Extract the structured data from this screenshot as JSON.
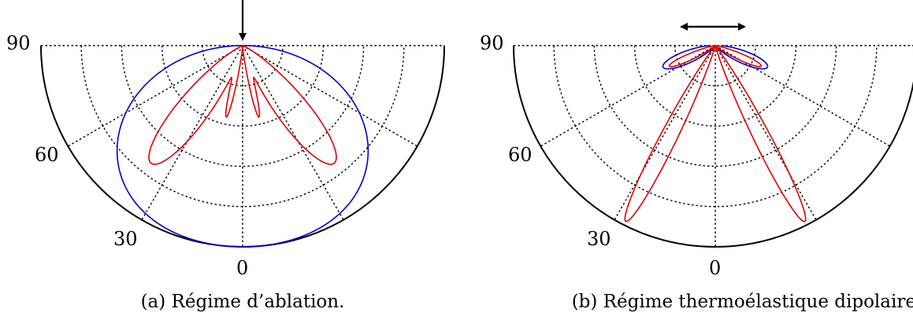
{
  "panels": [
    {
      "id": "a",
      "caption": "(a) Régime d’ablation.",
      "angle_labels": [
        "90",
        "60",
        "30",
        "0"
      ],
      "source_arrow": "down-arrow",
      "curves": [
        {
          "kind": "blue",
          "color": "#0000cc"
        },
        {
          "kind": "red",
          "color": "#dd0000"
        }
      ]
    },
    {
      "id": "b",
      "caption": "(b) Régime thermoélastique dipolaire.",
      "angle_labels": [
        "90",
        "60",
        "30",
        "0"
      ],
      "source_arrow": "double-horizontal-arrow",
      "curves": [
        {
          "kind": "blue",
          "color": "#0000cc"
        },
        {
          "kind": "red",
          "color": "#dd0000"
        }
      ]
    }
  ],
  "colors": {
    "grid": "#000000",
    "blue": "#0000cc",
    "red": "#dd0000"
  }
}
